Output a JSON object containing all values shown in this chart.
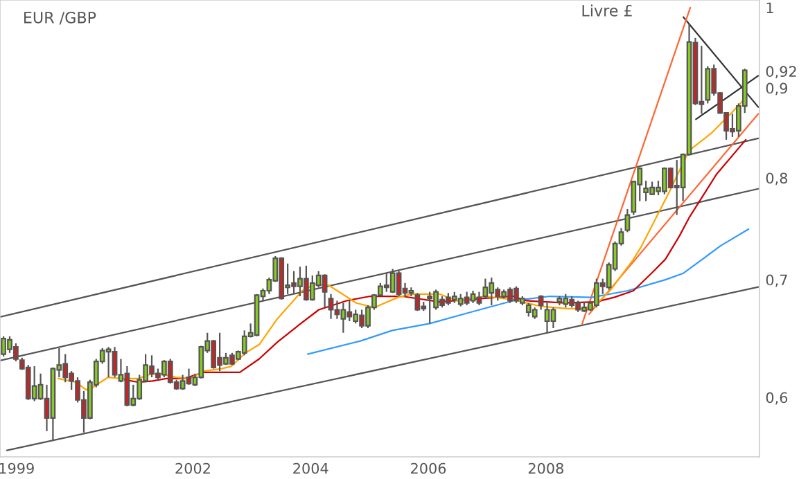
{
  "chart_data": {
    "type": "candlestick",
    "title": "EUR /GBP",
    "ylabel": "Livre £",
    "log": true,
    "grid": false,
    "legend": false,
    "xlim": [
      1998.72,
      2011.63
    ],
    "ylim": [
      0.555,
      1.01
    ],
    "xticks": [
      1999,
      2002,
      2004,
      2006,
      2008
    ],
    "yticks": [
      {
        "value": 0.6,
        "label": "0,6"
      },
      {
        "value": 0.7,
        "label": "0,7"
      },
      {
        "value": 0.8,
        "label": "0,8"
      },
      {
        "value": 0.9,
        "label": "0,9"
      },
      {
        "value": 0.92,
        "label": "0,92"
      },
      {
        "value": 1,
        "label": "1"
      }
    ],
    "x": [
      1998.78,
      1998.885,
      1998.99,
      1999.095,
      1999.2,
      1999.305,
      1999.41,
      1999.515,
      1999.62,
      1999.725,
      1999.83,
      1999.935,
      2000.04,
      2000.145,
      2000.25,
      2000.355,
      2000.46,
      2000.565,
      2000.67,
      2000.775,
      2000.88,
      2000.985,
      2001.09,
      2001.195,
      2001.3,
      2001.405,
      2001.51,
      2001.615,
      2001.72,
      2001.825,
      2001.93,
      2002.035,
      2002.14,
      2002.245,
      2002.35,
      2002.455,
      2002.56,
      2002.665,
      2002.77,
      2002.875,
      2002.98,
      2003.085,
      2003.19,
      2003.295,
      2003.4,
      2003.505,
      2003.61,
      2003.715,
      2003.82,
      2003.925,
      2004.03,
      2004.135,
      2004.24,
      2004.345,
      2004.45,
      2004.555,
      2004.66,
      2004.765,
      2004.87,
      2004.975,
      2005.08,
      2005.185,
      2005.29,
      2005.395,
      2005.5,
      2005.605,
      2005.71,
      2005.815,
      2005.92,
      2006.025,
      2006.13,
      2006.235,
      2006.34,
      2006.445,
      2006.55,
      2006.655,
      2006.76,
      2006.865,
      2006.97,
      2007.075,
      2007.18,
      2007.285,
      2007.39,
      2007.495,
      2007.6,
      2007.705,
      2007.81,
      2007.915,
      2008.02,
      2008.125,
      2008.23,
      2008.335,
      2008.44,
      2008.545,
      2008.65,
      2008.755,
      2008.86,
      2008.965,
      2009.07,
      2009.175,
      2009.28,
      2009.385,
      2009.49,
      2009.595,
      2009.7,
      2009.805,
      2009.91,
      2010.015,
      2010.12,
      2010.225,
      2010.33,
      2010.435,
      2010.54,
      2010.645,
      2010.75,
      2010.855,
      2010.96,
      2011.065,
      2011.17,
      2011.275,
      2011.38
    ],
    "ohlc": [
      [
        0.635,
        0.65,
        0.633,
        0.648
      ],
      [
        0.639,
        0.65,
        0.636,
        0.647
      ],
      [
        0.641,
        0.644,
        0.629,
        0.631
      ],
      [
        0.63,
        0.632,
        0.622,
        0.623
      ],
      [
        0.624,
        0.626,
        0.598,
        0.599
      ],
      [
        0.599,
        0.625,
        0.597,
        0.609
      ],
      [
        0.599,
        0.619,
        0.598,
        0.61
      ],
      [
        0.599,
        0.61,
        0.574,
        0.584
      ],
      [
        0.584,
        0.624,
        0.567,
        0.623
      ],
      [
        0.622,
        0.64,
        0.616,
        0.626
      ],
      [
        0.627,
        0.635,
        0.612,
        0.616
      ],
      [
        0.619,
        0.621,
        0.606,
        0.613
      ],
      [
        0.613,
        0.616,
        0.596,
        0.598
      ],
      [
        0.598,
        0.605,
        0.573,
        0.584
      ],
      [
        0.584,
        0.614,
        0.583,
        0.612
      ],
      [
        0.61,
        0.631,
        0.608,
        0.629
      ],
      [
        0.629,
        0.64,
        0.627,
        0.638
      ],
      [
        0.637,
        0.641,
        0.616,
        0.639
      ],
      [
        0.637,
        0.641,
        0.616,
        0.618
      ],
      [
        0.613,
        0.631,
        0.612,
        0.618
      ],
      [
        0.619,
        0.625,
        0.593,
        0.594
      ],
      [
        0.594,
        0.61,
        0.593,
        0.599
      ],
      [
        0.599,
        0.618,
        0.598,
        0.614
      ],
      [
        0.613,
        0.635,
        0.612,
        0.626
      ],
      [
        0.625,
        0.634,
        0.616,
        0.619
      ],
      [
        0.619,
        0.623,
        0.614,
        0.616
      ],
      [
        0.618,
        0.63,
        0.616,
        0.629
      ],
      [
        0.629,
        0.631,
        0.611,
        0.612
      ],
      [
        0.612,
        0.614,
        0.606,
        0.607
      ],
      [
        0.607,
        0.618,
        0.606,
        0.613
      ],
      [
        0.616,
        0.623,
        0.61,
        0.611
      ],
      [
        0.61,
        0.619,
        0.609,
        0.616
      ],
      [
        0.616,
        0.642,
        0.615,
        0.641
      ],
      [
        0.638,
        0.653,
        0.636,
        0.646
      ],
      [
        0.646,
        0.647,
        0.623,
        0.624
      ],
      [
        0.632,
        0.653,
        0.621,
        0.626
      ],
      [
        0.627,
        0.636,
        0.626,
        0.632
      ],
      [
        0.634,
        0.636,
        0.626,
        0.627
      ],
      [
        0.631,
        0.638,
        0.63,
        0.637
      ],
      [
        0.636,
        0.655,
        0.634,
        0.65
      ],
      [
        0.65,
        0.661,
        0.649,
        0.653
      ],
      [
        0.651,
        0.687,
        0.65,
        0.686
      ],
      [
        0.685,
        0.692,
        0.681,
        0.69
      ],
      [
        0.69,
        0.702,
        0.687,
        0.7
      ],
      [
        0.699,
        0.722,
        0.698,
        0.72
      ],
      [
        0.72,
        0.721,
        0.682,
        0.683
      ],
      [
        0.693,
        0.715,
        0.687,
        0.695
      ],
      [
        0.697,
        0.708,
        0.687,
        0.694
      ],
      [
        0.694,
        0.712,
        0.685,
        0.701
      ],
      [
        0.701,
        0.713,
        0.681,
        0.682
      ],
      [
        0.682,
        0.704,
        0.681,
        0.697
      ],
      [
        0.695,
        0.708,
        0.693,
        0.704
      ],
      [
        0.704,
        0.705,
        0.675,
        0.689
      ],
      [
        0.683,
        0.687,
        0.665,
        0.673
      ],
      [
        0.673,
        0.681,
        0.665,
        0.669
      ],
      [
        0.665,
        0.679,
        0.653,
        0.673
      ],
      [
        0.671,
        0.681,
        0.663,
        0.667
      ],
      [
        0.663,
        0.673,
        0.661,
        0.669
      ],
      [
        0.668,
        0.673,
        0.657,
        0.659
      ],
      [
        0.659,
        0.677,
        0.657,
        0.675
      ],
      [
        0.675,
        0.687,
        0.673,
        0.686
      ],
      [
        0.686,
        0.697,
        0.685,
        0.694
      ],
      [
        0.695,
        0.706,
        0.689,
        0.693
      ],
      [
        0.689,
        0.71,
        0.688,
        0.706
      ],
      [
        0.706,
        0.708,
        0.685,
        0.687
      ],
      [
        0.692,
        0.697,
        0.685,
        0.688
      ],
      [
        0.688,
        0.693,
        0.685,
        0.69
      ],
      [
        0.686,
        0.688,
        0.672,
        0.673
      ],
      [
        0.676,
        0.68,
        0.672,
        0.674
      ],
      [
        0.685,
        0.689,
        0.661,
        0.683
      ],
      [
        0.675,
        0.691,
        0.673,
        0.689
      ],
      [
        0.682,
        0.685,
        0.675,
        0.677
      ],
      [
        0.684,
        0.688,
        0.677,
        0.679
      ],
      [
        0.682,
        0.689,
        0.679,
        0.685
      ],
      [
        0.678,
        0.687,
        0.676,
        0.683
      ],
      [
        0.684,
        0.689,
        0.677,
        0.679
      ],
      [
        0.681,
        0.69,
        0.679,
        0.687
      ],
      [
        0.684,
        0.689,
        0.677,
        0.679
      ],
      [
        0.685,
        0.701,
        0.683,
        0.693
      ],
      [
        0.688,
        0.702,
        0.677,
        0.697
      ],
      [
        0.691,
        0.693,
        0.681,
        0.685
      ],
      [
        0.685,
        0.691,
        0.683,
        0.689
      ],
      [
        0.691,
        0.693,
        0.679,
        0.681
      ],
      [
        0.692,
        0.694,
        0.679,
        0.681
      ],
      [
        0.679,
        0.685,
        0.677,
        0.683
      ],
      [
        0.671,
        0.679,
        0.667,
        0.677
      ],
      [
        0.667,
        0.675,
        0.665,
        0.673
      ],
      [
        0.685,
        0.686,
        0.673,
        0.677
      ],
      [
        0.663,
        0.679,
        0.653,
        0.673
      ],
      [
        0.663,
        0.675,
        0.657,
        0.673
      ],
      [
        0.68,
        0.685,
        0.677,
        0.683
      ],
      [
        0.678,
        0.687,
        0.675,
        0.683
      ],
      [
        0.682,
        0.685,
        0.675,
        0.677
      ],
      [
        0.679,
        0.681,
        0.671,
        0.673
      ],
      [
        0.672,
        0.679,
        0.671,
        0.675
      ],
      [
        0.673,
        0.68,
        0.672,
        0.679
      ],
      [
        0.677,
        0.701,
        0.675,
        0.697
      ],
      [
        0.697,
        0.701,
        0.687,
        0.694
      ],
      [
        0.693,
        0.716,
        0.691,
        0.714
      ],
      [
        0.71,
        0.736,
        0.708,
        0.734
      ],
      [
        0.734,
        0.749,
        0.732,
        0.745
      ],
      [
        0.747,
        0.768,
        0.745,
        0.762
      ],
      [
        0.765,
        0.797,
        0.762,
        0.796
      ],
      [
        0.793,
        0.811,
        0.776,
        0.81
      ],
      [
        0.785,
        0.797,
        0.776,
        0.789
      ],
      [
        0.783,
        0.796,
        0.782,
        0.79
      ],
      [
        0.786,
        0.797,
        0.782,
        0.79
      ],
      [
        0.786,
        0.811,
        0.783,
        0.81
      ],
      [
        0.81,
        0.811,
        0.789,
        0.79
      ],
      [
        0.792,
        0.819,
        0.762,
        0.79
      ],
      [
        0.79,
        0.826,
        0.776,
        0.825
      ],
      [
        0.825,
        0.979,
        0.824,
        0.956
      ],
      [
        0.955,
        0.961,
        0.88,
        0.882
      ],
      [
        0.884,
        0.951,
        0.87,
        0.881
      ],
      [
        0.886,
        0.926,
        0.882,
        0.923
      ],
      [
        0.923,
        0.928,
        0.891,
        0.894
      ],
      [
        0.894,
        0.895,
        0.87,
        0.871
      ],
      [
        0.871,
        0.871,
        0.841,
        0.851
      ],
      [
        0.853,
        0.87,
        0.844,
        0.85
      ],
      [
        0.851,
        0.882,
        0.844,
        0.879
      ],
      [
        0.879,
        0.923,
        0.871,
        0.921
      ]
    ],
    "colors": [
      "#88cc22",
      "#88cc22",
      "#cc2222",
      "#cc2222",
      "#cc2222",
      "#88cc22",
      "#88cc22",
      "#cc2222",
      "#88cc22",
      "#88cc22",
      "#cc2222",
      "#cc2222",
      "#cc2222",
      "#cc2222",
      "#88cc22",
      "#88cc22",
      "#88cc22",
      "#88cc22",
      "#cc2222",
      "#88cc22",
      "#cc2222",
      "#88cc22",
      "#88cc22",
      "#88cc22",
      "#cc2222",
      "#cc2222",
      "#88cc22",
      "#cc2222",
      "#cc2222",
      "#88cc22",
      "#cc2222",
      "#88cc22",
      "#88cc22",
      "#88cc22",
      "#cc2222",
      "#cc2222",
      "#88cc22",
      "#cc2222",
      "#88cc22",
      "#88cc22",
      "#88cc22",
      "#88cc22",
      "#88cc22",
      "#88cc22",
      "#88cc22",
      "#cc2222",
      "#88cc22",
      "#cc2222",
      "#88cc22",
      "#cc2222",
      "#88cc22",
      "#88cc22",
      "#cc2222",
      "#cc2222",
      "#cc2222",
      "#88cc22",
      "#cc2222",
      "#88cc22",
      "#cc2222",
      "#88cc22",
      "#88cc22",
      "#88cc22",
      "#cc2222",
      "#88cc22",
      "#cc2222",
      "#cc2222",
      "#88cc22",
      "#cc2222",
      "#cc2222",
      "#cc2222",
      "#88cc22",
      "#cc2222",
      "#cc2222",
      "#88cc22",
      "#88cc22",
      "#cc2222",
      "#88cc22",
      "#cc2222",
      "#88cc22",
      "#88cc22",
      "#cc2222",
      "#88cc22",
      "#cc2222",
      "#cc2222",
      "#88cc22",
      "#88cc22",
      "#88cc22",
      "#cc2222",
      "#88cc22",
      "#88cc22",
      "#88cc22",
      "#88cc22",
      "#cc2222",
      "#cc2222",
      "#88cc22",
      "#88cc22",
      "#88cc22",
      "#cc2222",
      "#88cc22",
      "#88cc22",
      "#88cc22",
      "#88cc22",
      "#88cc22",
      "#88cc22",
      "#88cc22",
      "#88cc22",
      "#88cc22",
      "#88cc22",
      "#cc2222",
      "#cc2222",
      "#88cc22",
      "#88cc22",
      "#cc2222",
      "#cc2222",
      "#88cc22",
      "#cc2222",
      "#cc2222",
      "#cc2222",
      "#cc2222",
      "#88cc22",
      "#88cc22"
    ],
    "series": [
      {
        "type": "line",
        "color": "#555555",
        "x": [
          1998.72,
          2011.609
        ],
        "values": [
          0.6667,
          0.8425
        ]
      },
      {
        "type": "line",
        "color": "#555555",
        "x": [
          1998.72,
          2011.609
        ],
        "values": [
          0.6297,
          0.7886
        ]
      },
      {
        "type": "line",
        "color": "#555555",
        "x": [
          1998.838,
          2011.609
        ],
        "values": [
          0.5597,
          0.6934
        ]
      },
      {
        "type": "line",
        "color": "#333333",
        "x": [
          2010.337,
          2011.609
        ],
        "values": [
          0.9876,
          0.8778
        ]
      },
      {
        "type": "line",
        "color": "#333333",
        "x": [
          2010.549,
          2011.609
        ],
        "values": [
          0.8638,
          0.9146
        ]
      },
      {
        "type": "line",
        "color": "#ff6633",
        "x": [
          2008.616,
          2010.454
        ],
        "values": [
          0.6608,
          1.0
        ]
      },
      {
        "type": "line",
        "color": "#ff6633",
        "x": [
          2008.734,
          2011.609
        ],
        "values": [
          0.6691,
          0.87
        ]
      },
      {
        "type": "line",
        "color": "#3399ff",
        "x": [
          2003.951,
          2004.846,
          2005.388,
          2006.025,
          2006.731,
          2007.438,
          2008.074,
          2008.781,
          2009.393,
          2010.03,
          2010.337,
          2010.973,
          2011.444
        ],
        "values": [
          0.635,
          0.646,
          0.655,
          0.661,
          0.671,
          0.681,
          0.685,
          0.684,
          0.69,
          0.7,
          0.706,
          0.732,
          0.748
        ]
      },
      {
        "type": "line",
        "color": "#cc0000",
        "x": [
          2000.841,
          2001.076,
          2001.312,
          2001.548,
          2001.854,
          2002.184,
          2002.561,
          2002.796,
          2003.126,
          2003.433,
          2003.833,
          2004.139,
          2004.375,
          2004.611,
          2005.011,
          2005.553,
          2006.189,
          2006.661,
          2007.438,
          2007.674,
          2008.31,
          2008.852,
          2009.158,
          2009.488,
          2009.795,
          2010.03,
          2010.266,
          2010.431,
          2010.902,
          2011.397
        ],
        "values": [
          0.614,
          0.612,
          0.613,
          0.615,
          0.615,
          0.62,
          0.62,
          0.62,
          0.631,
          0.645,
          0.661,
          0.673,
          0.677,
          0.681,
          0.685,
          0.685,
          0.68,
          0.682,
          0.685,
          0.681,
          0.679,
          0.68,
          0.684,
          0.69,
          0.706,
          0.719,
          0.741,
          0.759,
          0.804,
          0.841
        ]
      },
      {
        "type": "line",
        "color": "#ffa500",
        "x": [
          1999.71,
          2000.016,
          2000.181,
          2000.299,
          2000.558,
          2000.77,
          2001.076,
          2001.241,
          2001.43,
          2001.713,
          2001.948,
          2002.184,
          2002.49,
          2002.655,
          2002.891,
          2003.126,
          2003.433,
          2003.857,
          2004.069,
          2004.304,
          2004.54,
          2004.776,
          2005.082,
          2005.483,
          2005.718,
          2006.189,
          2006.496,
          2006.967,
          2007.438,
          2007.91,
          2008.381,
          2008.781,
          2009.088,
          2009.488,
          2009.63,
          2010.101,
          2010.431,
          2010.808,
          2011.138,
          2011.373
        ],
        "values": [
          0.615,
          0.612,
          0.606,
          0.608,
          0.616,
          0.615,
          0.615,
          0.618,
          0.619,
          0.616,
          0.615,
          0.621,
          0.623,
          0.625,
          0.636,
          0.643,
          0.665,
          0.69,
          0.696,
          0.695,
          0.687,
          0.679,
          0.675,
          0.684,
          0.687,
          0.687,
          0.681,
          0.685,
          0.682,
          0.676,
          0.674,
          0.674,
          0.69,
          0.719,
          0.732,
          0.786,
          0.829,
          0.848,
          0.87,
          0.887
        ]
      }
    ]
  }
}
